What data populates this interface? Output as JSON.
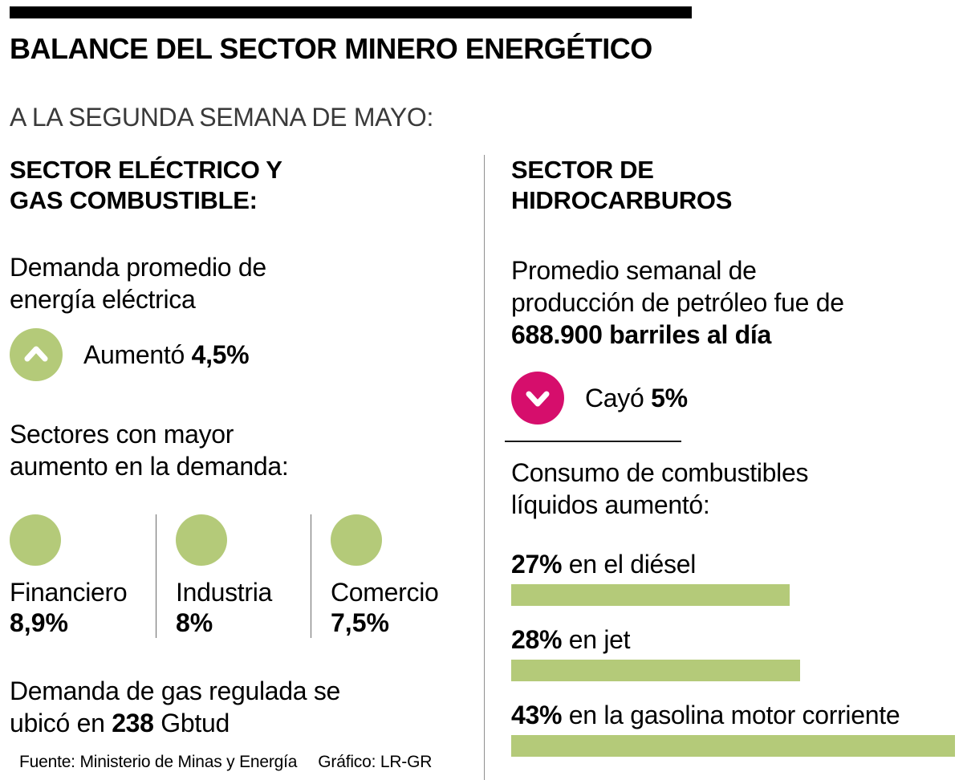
{
  "title": "BALANCE DEL SECTOR MINERO ENERGÉTICO",
  "subtitle": "A LA SEGUNDA SEMANA DE MAYO:",
  "colors": {
    "accent_green": "#b4ca79",
    "accent_pink": "#d60e6c",
    "text": "#000000"
  },
  "left": {
    "heading": "SECTOR ELÉCTRICO Y\nGAS COMBUSTIBLE:",
    "electric_demand": {
      "label": "Demanda promedio de\nenergía eléctrica",
      "direction_icon": "arrow-up-circle",
      "verb": "Aumentó ",
      "value": "4,5%"
    },
    "sectors": {
      "label": "Sectores con mayor\naumento en la demanda:",
      "items": [
        {
          "name": "Financiero",
          "value": "8,9%"
        },
        {
          "name": "Industria",
          "value": "8%"
        },
        {
          "name": "Comercio",
          "value": "7,5%"
        }
      ]
    },
    "gas": {
      "line1": "Demanda de gas regulada se",
      "line2_pre": "ubicó en ",
      "value": "238",
      "line2_post": " Gbtud"
    }
  },
  "right": {
    "heading": "SECTOR DE\nHIDROCARBUROS",
    "oil": {
      "intro": "Promedio semanal de\nproducción de petróleo fue de\n",
      "highlight": "688.900 barriles al día",
      "direction_icon": "arrow-down-circle",
      "verb": "Cayó ",
      "value": "5%"
    },
    "fuels": {
      "label": "Consumo de combustibles\nlíquidos aumentó:",
      "items": [
        {
          "pct": "27%",
          "label": " en el diésel",
          "value": 27
        },
        {
          "pct": "28%",
          "label": " en jet",
          "value": 28
        },
        {
          "pct": "43%",
          "label": " en la gasolina motor corriente",
          "value": 43
        }
      ]
    }
  },
  "footer": {
    "source": "Fuente: Ministerio de Minas y Energía",
    "credit": "Gráfico: LR-GR"
  },
  "chart_data": [
    {
      "type": "bar",
      "title": "Sectores con mayor aumento en la demanda",
      "categories": [
        "Financiero",
        "Industria",
        "Comercio"
      ],
      "values": [
        8.9,
        8,
        7.5
      ],
      "unit": "%",
      "note": "shown as equal-size green circles with labels"
    },
    {
      "type": "bar",
      "title": "Consumo de combustibles líquidos aumentó",
      "categories": [
        "en el diésel",
        "en jet",
        "en la gasolina motor corriente"
      ],
      "values": [
        27,
        28,
        43
      ],
      "unit": "%",
      "bar_color": "#b4ca79",
      "note": "horizontal bars, width proportional to value, max value fills column width"
    }
  ]
}
